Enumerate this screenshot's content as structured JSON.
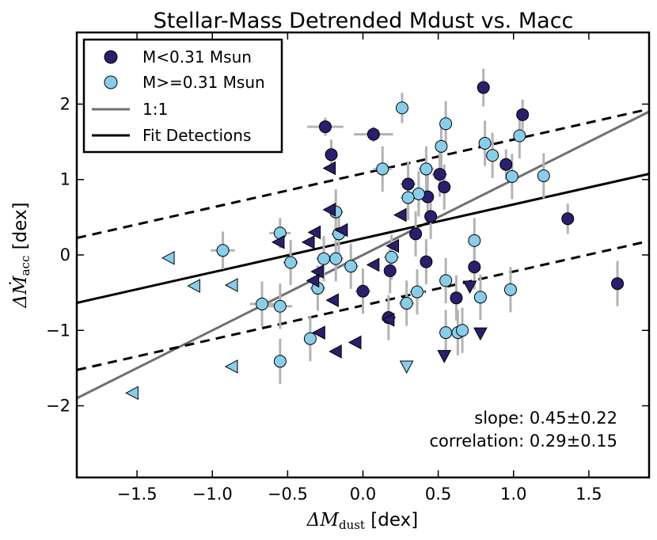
{
  "chart_data": {
    "type": "scatter",
    "title": "Stellar-Mass Detrended Mdust vs. Macc",
    "xlabel": "ΔM",
    "xlabel_sub": "dust",
    "xlabel_unit": " [dex]",
    "ylabel": "ΔṀ",
    "ylabel_sub": "acc",
    "ylabel_unit": " [dex]",
    "xlim": [
      -1.9,
      1.9
    ],
    "ylim": [
      -2.95,
      2.95
    ],
    "xticks": [
      -1.5,
      -1.0,
      -0.5,
      0.0,
      0.5,
      1.0,
      1.5
    ],
    "xtick_labels": [
      "−1.5",
      "−1.0",
      "−0.5",
      "0.0",
      "0.5",
      "1.0",
      "1.5"
    ],
    "yticks": [
      -2,
      -1,
      0,
      1,
      2
    ],
    "ytick_labels": [
      "−2",
      "−1",
      "0",
      "1",
      "2"
    ],
    "grid": false,
    "legend_position": "top-left",
    "legend": [
      {
        "label": "M<0.31  Msun",
        "kind": "dot",
        "color": "#2a1f6e"
      },
      {
        "label": "M>=0.31 Msun",
        "kind": "dot",
        "color": "#87ceeb"
      },
      {
        "label": "1:1",
        "kind": "line",
        "color": "#707070"
      },
      {
        "label": "Fit Detections",
        "kind": "line",
        "color": "#000000"
      }
    ],
    "colors": {
      "low": "#2a1f6e",
      "high": "#87ceeb",
      "errorbar": "#b3b3b3",
      "one_to_one": "#707070",
      "fit": "#000000"
    },
    "fit_line": {
      "slope": 0.45,
      "intercept": 0.22
    },
    "fit_confidence_lines": [
      {
        "slope": 0.45,
        "intercept": 1.08
      },
      {
        "slope": 0.45,
        "intercept": -0.67
      }
    ],
    "one_to_one": {
      "slope": 1.0,
      "intercept": 0.0
    },
    "series": [
      {
        "name": "M<0.31  Msun",
        "marker": "circle",
        "points": [
          {
            "x": -0.25,
            "y": 1.7,
            "xerr": 0.12,
            "yerr": 0.12
          },
          {
            "x": -0.21,
            "y": 1.33,
            "xerr": 0.04,
            "yerr": 0.2
          },
          {
            "x": 0.07,
            "y": 1.6,
            "xerr": 0.13,
            "yerr": 0.1
          },
          {
            "x": 0.8,
            "y": 2.22,
            "xerr": 0.02,
            "yerr": 0.25
          },
          {
            "x": 1.06,
            "y": 1.86,
            "xerr": 0.02,
            "yerr": 0.2
          },
          {
            "x": 0.95,
            "y": 1.2,
            "xerr": 0.03,
            "yerr": 0.2
          },
          {
            "x": 0.3,
            "y": 0.94,
            "xerr": 0.05,
            "yerr": 0.3
          },
          {
            "x": 0.51,
            "y": 1.07,
            "xerr": 0.05,
            "yerr": 0.3
          },
          {
            "x": 0.54,
            "y": 0.9,
            "xerr": 0.03,
            "yerr": 0.3
          },
          {
            "x": 0.43,
            "y": 0.77,
            "xerr": 0.04,
            "yerr": 0.3
          },
          {
            "x": 0.45,
            "y": 0.51,
            "xerr": 0.03,
            "yerr": 0.3
          },
          {
            "x": 0.35,
            "y": 0.28,
            "xerr": 0.04,
            "yerr": 0.3
          },
          {
            "x": 0.42,
            "y": -0.09,
            "xerr": 0.03,
            "yerr": 0.3
          },
          {
            "x": 0.18,
            "y": -0.21,
            "xerr": 0.03,
            "yerr": 0.3
          },
          {
            "x": 0.0,
            "y": -0.48,
            "xerr": 0.05,
            "yerr": 0.3
          },
          {
            "x": 0.17,
            "y": -0.83,
            "xerr": 0.05,
            "yerr": 0.3
          },
          {
            "x": 0.74,
            "y": -0.16,
            "xerr": 0.03,
            "yerr": 0.3
          },
          {
            "x": 0.62,
            "y": -0.57,
            "xerr": 0.03,
            "yerr": 0.3
          },
          {
            "x": 1.36,
            "y": 0.48,
            "xerr": 0.02,
            "yerr": 0.2
          },
          {
            "x": 1.69,
            "y": -0.38,
            "xerr": 0.02,
            "yerr": 0.3
          }
        ]
      },
      {
        "name": "M>=0.31 Msun",
        "marker": "circle",
        "points": [
          {
            "x": 0.26,
            "y": 1.95,
            "xerr": 0.03,
            "yerr": 0.2
          },
          {
            "x": 0.55,
            "y": 1.74,
            "xerr": 0.03,
            "yerr": 0.3
          },
          {
            "x": 0.52,
            "y": 1.44,
            "xerr": 0.03,
            "yerr": 0.3
          },
          {
            "x": 0.81,
            "y": 1.48,
            "xerr": 0.02,
            "yerr": 0.3
          },
          {
            "x": 0.86,
            "y": 1.32,
            "xerr": 0.02,
            "yerr": 0.3
          },
          {
            "x": 1.04,
            "y": 1.58,
            "xerr": 0.03,
            "yerr": 0.3
          },
          {
            "x": 0.99,
            "y": 1.04,
            "xerr": 0.03,
            "yerr": 0.3
          },
          {
            "x": 1.2,
            "y": 1.05,
            "xerr": 0.02,
            "yerr": 0.3
          },
          {
            "x": 0.13,
            "y": 1.14,
            "xerr": 0.06,
            "yerr": 0.3
          },
          {
            "x": 0.42,
            "y": 1.14,
            "xerr": 0.05,
            "yerr": 0.3
          },
          {
            "x": 0.37,
            "y": 0.81,
            "xerr": 0.05,
            "yerr": 0.3
          },
          {
            "x": 0.3,
            "y": 0.76,
            "xerr": 0.05,
            "yerr": 0.3
          },
          {
            "x": -0.18,
            "y": 0.57,
            "xerr": 0.05,
            "yerr": 0.3
          },
          {
            "x": -0.16,
            "y": 0.28,
            "xerr": 0.05,
            "yerr": 0.3
          },
          {
            "x": -0.55,
            "y": 0.29,
            "xerr": 0.07,
            "yerr": 0.2
          },
          {
            "x": -0.93,
            "y": 0.06,
            "xerr": 0.08,
            "yerr": 0.25
          },
          {
            "x": -0.48,
            "y": -0.1,
            "xerr": 0.05,
            "yerr": 0.3
          },
          {
            "x": -0.26,
            "y": -0.05,
            "xerr": 0.05,
            "yerr": 0.3
          },
          {
            "x": -0.18,
            "y": -0.05,
            "xerr": 0.05,
            "yerr": 0.3
          },
          {
            "x": -0.08,
            "y": -0.15,
            "xerr": 0.05,
            "yerr": 0.3
          },
          {
            "x": 0.19,
            "y": -0.03,
            "xerr": 0.05,
            "yerr": 0.3
          },
          {
            "x": -0.3,
            "y": -0.44,
            "xerr": 0.05,
            "yerr": 0.3
          },
          {
            "x": 0.36,
            "y": -0.49,
            "xerr": 0.05,
            "yerr": 0.3
          },
          {
            "x": 0.29,
            "y": -0.64,
            "xerr": 0.05,
            "yerr": 0.3
          },
          {
            "x": -0.67,
            "y": -0.65,
            "xerr": 0.08,
            "yerr": 0.3
          },
          {
            "x": -0.55,
            "y": -0.68,
            "xerr": 0.08,
            "yerr": 0.3
          },
          {
            "x": -0.35,
            "y": -1.11,
            "xerr": 0.04,
            "yerr": 0.3
          },
          {
            "x": -0.55,
            "y": -1.41,
            "xerr": 0.03,
            "yerr": 0.3
          },
          {
            "x": 0.55,
            "y": -0.34,
            "xerr": 0.03,
            "yerr": 0.3
          },
          {
            "x": 0.55,
            "y": -1.03,
            "xerr": 0.03,
            "yerr": 0.3
          },
          {
            "x": 0.63,
            "y": -1.03,
            "xerr": 0.03,
            "yerr": 0.3
          },
          {
            "x": 0.66,
            "y": -1.0,
            "xerr": 0.03,
            "yerr": 0.3
          },
          {
            "x": 0.74,
            "y": 0.19,
            "xerr": 0.03,
            "yerr": 0.3
          },
          {
            "x": 0.78,
            "y": -0.56,
            "xerr": 0.03,
            "yerr": 0.3
          },
          {
            "x": 0.98,
            "y": -0.46,
            "xerr": 0.03,
            "yerr": 0.3
          }
        ]
      },
      {
        "name": "M<0.31 upper limits (x)",
        "marker": "triangle-left",
        "color_key": "low",
        "points": [
          {
            "x": -0.22,
            "y": 1.15
          },
          {
            "x": -0.22,
            "y": 0.6
          },
          {
            "x": -0.14,
            "y": 0.33
          },
          {
            "x": -0.36,
            "y": 0.17
          },
          {
            "x": -0.32,
            "y": 0.3
          },
          {
            "x": -0.3,
            "y": -0.22
          },
          {
            "x": -0.33,
            "y": -0.34
          },
          {
            "x": -0.2,
            "y": -0.6
          },
          {
            "x": -0.29,
            "y": -1.03
          },
          {
            "x": -0.18,
            "y": -1.28
          },
          {
            "x": -0.05,
            "y": -1.16
          },
          {
            "x": 0.07,
            "y": -0.13
          },
          {
            "x": 0.17,
            "y": -0.86
          },
          {
            "x": 0.2,
            "y": 0.12
          },
          {
            "x": 0.25,
            "y": 0.53
          },
          {
            "x": -0.56,
            "y": 0.17
          }
        ]
      },
      {
        "name": "M>=0.31 upper limits (x)",
        "marker": "triangle-left",
        "color_key": "high",
        "points": [
          {
            "x": -1.29,
            "y": -0.04
          },
          {
            "x": -1.12,
            "y": -0.41
          },
          {
            "x": -0.87,
            "y": -0.4
          },
          {
            "x": -0.87,
            "y": -1.48
          },
          {
            "x": -1.53,
            "y": -1.83
          }
        ]
      },
      {
        "name": "M<0.31 upper limits (y)",
        "marker": "triangle-down",
        "color_key": "low",
        "points": [
          {
            "x": 0.54,
            "y": -1.34
          },
          {
            "x": 0.71,
            "y": -0.42
          },
          {
            "x": 0.78,
            "y": -1.04
          }
        ]
      },
      {
        "name": "M>=0.31 upper limits (y)",
        "marker": "triangle-down",
        "color_key": "high",
        "points": [
          {
            "x": 0.29,
            "y": -1.48
          }
        ]
      }
    ],
    "annotations": [
      "slope: 0.45±0.22",
      "correlation: 0.29±0.15"
    ]
  }
}
